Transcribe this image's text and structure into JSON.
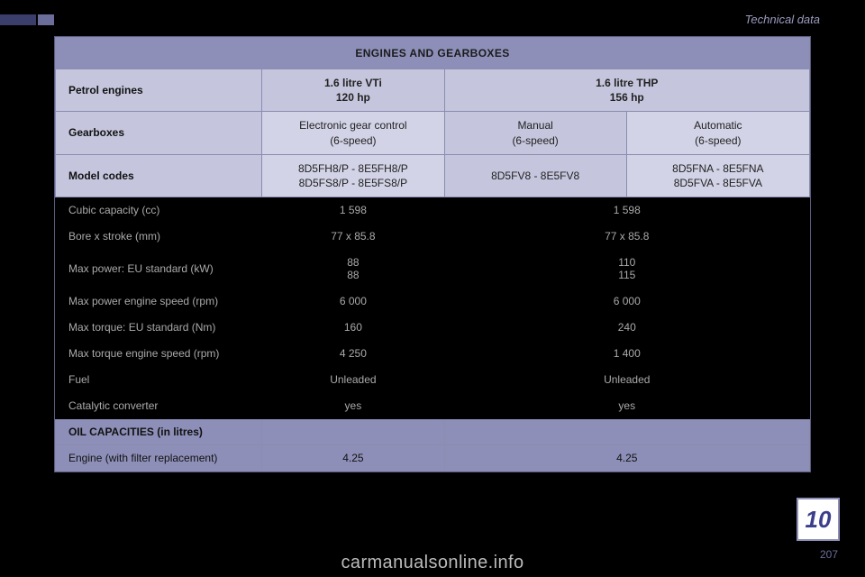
{
  "section": "Technical data",
  "page_badge": "10",
  "page_number": "207",
  "watermark": "carmanualsonline.info",
  "colors": {
    "header_bg": "#8d8fb8",
    "subheader_bg": "#c5c6dd",
    "subheader2_bg": "#d2d3e6",
    "border": "#8a8caf",
    "stripe_dark": "#3b3e6b",
    "stripe_light": "#6b6e9b",
    "badge_border": "#8d8fb8",
    "badge_text": "#3b3e8a"
  },
  "table": {
    "title": "ENGINES AND GEARBOXES",
    "row_petrol": {
      "label": "Petrol engines",
      "colA": "1.6 litre VTi\n120 hp",
      "colBC": "1.6 litre THP\n156 hp"
    },
    "row_gear": {
      "label": "Gearboxes",
      "colA": "Electronic gear control\n(6-speed)",
      "colB": "Manual\n(6-speed)",
      "colC": "Automatic\n(6-speed)"
    },
    "row_codes": {
      "label": "Model codes",
      "colA": "8D5FH8/P - 8E5FH8/P\n8D5FS8/P - 8E5FS8/P",
      "colB": "8D5FV8 - 8E5FV8",
      "colC": "8D5FNA - 8E5FNA\n8D5FVA - 8E5FVA"
    },
    "body": [
      {
        "label": "Cubic capacity (cc)",
        "a": "1 598",
        "bc": "1 598"
      },
      {
        "label": "Bore x stroke (mm)",
        "a": "77 x 85.8",
        "bc": "77 x 85.8"
      },
      {
        "label": "Max power: EU standard (kW)",
        "a": "88\n88",
        "bc": "110\n115"
      },
      {
        "label": "Max power engine speed (rpm)",
        "a": "6 000",
        "bc": "6 000"
      },
      {
        "label": "Max torque: EU standard (Nm)",
        "a": "160",
        "bc": "240"
      },
      {
        "label": "Max torque engine speed (rpm)",
        "a": "4 250",
        "bc": "1 400"
      },
      {
        "label": "Fuel",
        "a": "Unleaded",
        "bc": "Unleaded"
      },
      {
        "label": "Catalytic converter",
        "a": "yes",
        "bc": "yes"
      }
    ],
    "footer_label": "OIL CAPACITIES (in litres)",
    "footer_row": {
      "label": "Engine (with filter replacement)",
      "a": "4.25",
      "bc": "4.25"
    }
  }
}
